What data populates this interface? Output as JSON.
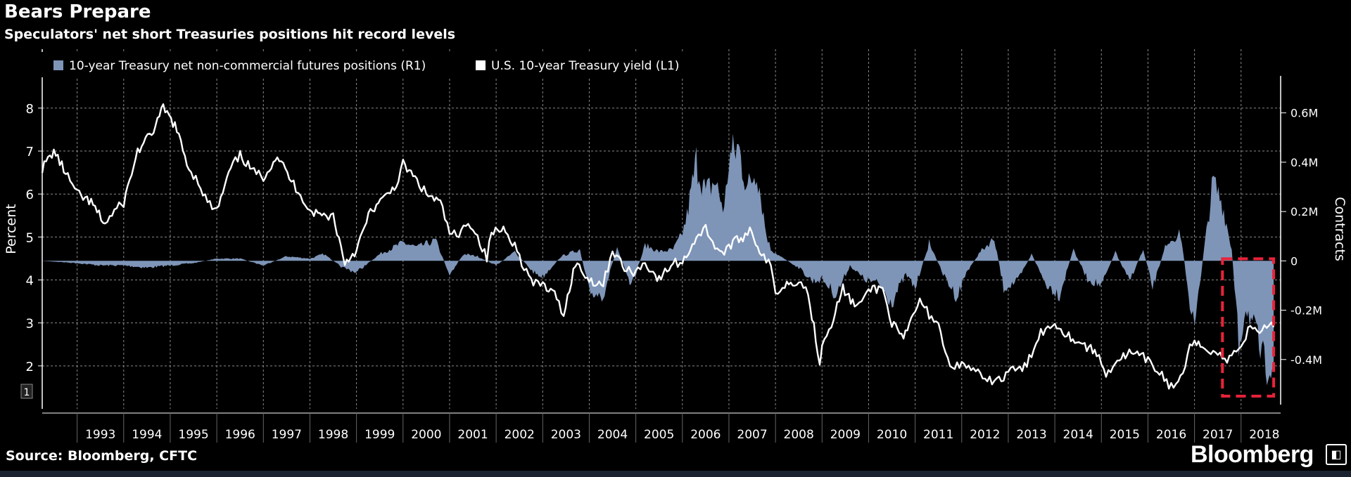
{
  "header": {
    "title": "Bears Prepare",
    "subtitle": "Speculators' net short Treasuries positions hit record levels"
  },
  "footer": {
    "source": "Source: Bloomberg, CFTC",
    "brand": "Bloomberg"
  },
  "colors": {
    "background": "#000000",
    "positions_bar": "#7e95b8",
    "yield_line": "#ffffff",
    "highlight_box": "#e8233a",
    "grid": "#8a8a8a"
  },
  "chart_data": {
    "type": "line",
    "grid": true,
    "legend_placement": "top-left",
    "left_axis": {
      "label": "Percent",
      "ticks": [
        2,
        3,
        4,
        5,
        6,
        7,
        8
      ],
      "range": [
        1.0,
        8.75
      ]
    },
    "right_axis": {
      "label": "Contracts",
      "ticks": [
        0.6,
        0.4,
        0.2,
        0,
        -0.2,
        -0.4
      ],
      "tick_labels": [
        "0.6M",
        "0.4M",
        "0.2M",
        "0",
        "-0.2M",
        "-0.4M"
      ],
      "range": [
        -0.6,
        0.75
      ]
    },
    "x_axis": {
      "ticks": [
        "1993",
        "1994",
        "1995",
        "1996",
        "1997",
        "1998",
        "1999",
        "2000",
        "2001",
        "2002",
        "2003",
        "2004",
        "2005",
        "2006",
        "2007",
        "2008",
        "2009",
        "2010",
        "2011",
        "2012",
        "2013",
        "2014",
        "2015",
        "2016",
        "2017",
        "2018"
      ],
      "range": [
        1992.25,
        2018.85
      ]
    },
    "series": [
      {
        "name": "10-year Treasury net non-commercial futures positions (R1)",
        "type": "area",
        "axis": "right",
        "x": [
          1992.25,
          1993.0,
          1993.5,
          1994.0,
          1994.5,
          1995.0,
          1995.5,
          1996.0,
          1996.5,
          1997.0,
          1997.5,
          1998.0,
          1998.3,
          1998.7,
          1999.0,
          1999.5,
          2000.0,
          2000.3,
          2000.7,
          2001.0,
          2001.3,
          2001.6,
          2002.0,
          2002.4,
          2002.8,
          2003.0,
          2003.4,
          2003.8,
          2004.0,
          2004.3,
          2004.6,
          2004.9,
          2005.2,
          2005.5,
          2005.8,
          2006.0,
          2006.1,
          2006.3,
          2006.5,
          2006.7,
          2006.9,
          2007.0,
          2007.2,
          2007.4,
          2007.6,
          2007.8,
          2007.9,
          2008.1,
          2008.5,
          2008.8,
          2009.0,
          2009.3,
          2009.6,
          2009.9,
          2010.2,
          2010.5,
          2010.8,
          2011.0,
          2011.3,
          2011.6,
          2011.9,
          2012.1,
          2012.4,
          2012.7,
          2012.9,
          2013.2,
          2013.5,
          2013.8,
          2014.1,
          2014.4,
          2014.7,
          2015.0,
          2015.3,
          2015.6,
          2015.9,
          2016.1,
          2016.4,
          2016.7,
          2016.9,
          2017.0,
          2017.2,
          2017.4,
          2017.6,
          2017.8,
          2017.95,
          2018.1,
          2018.3,
          2018.5,
          2018.7
        ],
        "values": [
          0.0,
          -0.01,
          -0.02,
          -0.02,
          -0.03,
          -0.02,
          -0.01,
          0.01,
          0.01,
          -0.02,
          0.02,
          0.01,
          0.03,
          -0.03,
          -0.05,
          0.03,
          0.08,
          0.06,
          0.09,
          -0.06,
          0.03,
          0.02,
          -0.02,
          0.04,
          -0.05,
          -0.07,
          0.02,
          0.05,
          -0.14,
          -0.15,
          0.06,
          -0.12,
          0.07,
          0.04,
          0.05,
          0.12,
          0.2,
          0.44,
          0.3,
          0.35,
          0.22,
          0.45,
          0.5,
          0.32,
          0.41,
          0.12,
          0.05,
          0.02,
          -0.03,
          -0.09,
          -0.08,
          -0.15,
          -0.02,
          -0.08,
          -0.1,
          -0.18,
          -0.06,
          -0.12,
          0.08,
          -0.06,
          -0.16,
          -0.05,
          0.04,
          0.1,
          -0.12,
          -0.09,
          0.03,
          -0.1,
          -0.15,
          0.05,
          -0.08,
          -0.11,
          0.04,
          -0.09,
          0.05,
          -0.12,
          0.08,
          0.12,
          -0.18,
          -0.3,
          0.04,
          0.35,
          0.25,
          0.05,
          -0.38,
          -0.2,
          -0.31,
          -0.47,
          -0.42
        ]
      },
      {
        "name": "U.S. 10-year Treasury yield (L1)",
        "type": "line",
        "axis": "left",
        "x": [
          1992.25,
          1992.5,
          1992.8,
          1993.0,
          1993.3,
          1993.6,
          1993.8,
          1994.0,
          1994.3,
          1994.6,
          1994.85,
          1995.1,
          1995.4,
          1995.6,
          1995.8,
          1996.0,
          1996.3,
          1996.5,
          1996.8,
          1997.0,
          1997.3,
          1997.6,
          1997.8,
          1998.0,
          1998.3,
          1998.5,
          1998.75,
          1999.0,
          1999.3,
          1999.6,
          1999.9,
          2000.0,
          2000.3,
          2000.5,
          2000.8,
          2001.0,
          2001.2,
          2001.4,
          2001.6,
          2001.8,
          2001.9,
          2002.2,
          2002.4,
          2002.6,
          2002.8,
          2003.0,
          2003.3,
          2003.45,
          2003.7,
          2004.0,
          2004.3,
          2004.5,
          2004.8,
          2005.0,
          2005.2,
          2005.5,
          2005.8,
          2006.0,
          2006.3,
          2006.5,
          2006.7,
          2006.9,
          2007.0,
          2007.3,
          2007.45,
          2007.7,
          2007.9,
          2008.0,
          2008.2,
          2008.5,
          2008.7,
          2008.95,
          2009.0,
          2009.2,
          2009.45,
          2009.7,
          2009.9,
          2010.0,
          2010.3,
          2010.5,
          2010.75,
          2011.0,
          2011.1,
          2011.3,
          2011.5,
          2011.7,
          2011.9,
          2012.1,
          2012.3,
          2012.5,
          2012.7,
          2012.9,
          2013.0,
          2013.2,
          2013.4,
          2013.6,
          2013.7,
          2013.9,
          2014.0,
          2014.3,
          2014.6,
          2014.9,
          2015.1,
          2015.3,
          2015.6,
          2015.9,
          2016.1,
          2016.3,
          2016.5,
          2016.7,
          2016.9,
          2017.0,
          2017.3,
          2017.5,
          2017.7,
          2017.9,
          2018.0,
          2018.2,
          2018.4,
          2018.6,
          2018.7
        ],
        "values": [
          6.6,
          7.0,
          6.4,
          6.0,
          5.8,
          5.3,
          5.6,
          5.8,
          7.0,
          7.4,
          8.0,
          7.6,
          6.6,
          6.3,
          5.8,
          5.6,
          6.6,
          6.9,
          6.5,
          6.4,
          6.9,
          6.3,
          6.0,
          5.6,
          5.5,
          5.5,
          4.4,
          4.7,
          5.6,
          5.9,
          6.3,
          6.7,
          6.3,
          6.0,
          5.8,
          5.1,
          5.0,
          5.4,
          5.0,
          4.5,
          5.1,
          5.2,
          4.8,
          4.3,
          3.9,
          3.9,
          3.6,
          3.2,
          4.4,
          4.0,
          3.9,
          4.7,
          4.2,
          4.2,
          4.4,
          4.0,
          4.4,
          4.4,
          5.0,
          5.2,
          4.8,
          4.6,
          4.8,
          5.0,
          5.2,
          4.6,
          4.3,
          3.7,
          3.9,
          4.0,
          3.7,
          2.1,
          2.5,
          3.0,
          3.8,
          3.4,
          3.5,
          3.8,
          3.8,
          3.0,
          2.6,
          3.3,
          3.5,
          3.2,
          3.0,
          2.1,
          2.0,
          2.0,
          1.9,
          1.6,
          1.7,
          1.7,
          1.9,
          1.9,
          2.0,
          2.6,
          2.8,
          2.9,
          3.0,
          2.7,
          2.5,
          2.3,
          1.8,
          2.1,
          2.3,
          2.2,
          2.0,
          1.8,
          1.5,
          1.7,
          2.4,
          2.5,
          2.4,
          2.3,
          2.1,
          2.4,
          2.5,
          2.9,
          2.8,
          3.0,
          2.9
        ]
      }
    ],
    "annotation": {
      "shape": "dashed-rectangle",
      "x_range": [
        2017.6,
        2018.7
      ],
      "y_range_right": [
        -0.52,
        0.0
      ]
    }
  }
}
